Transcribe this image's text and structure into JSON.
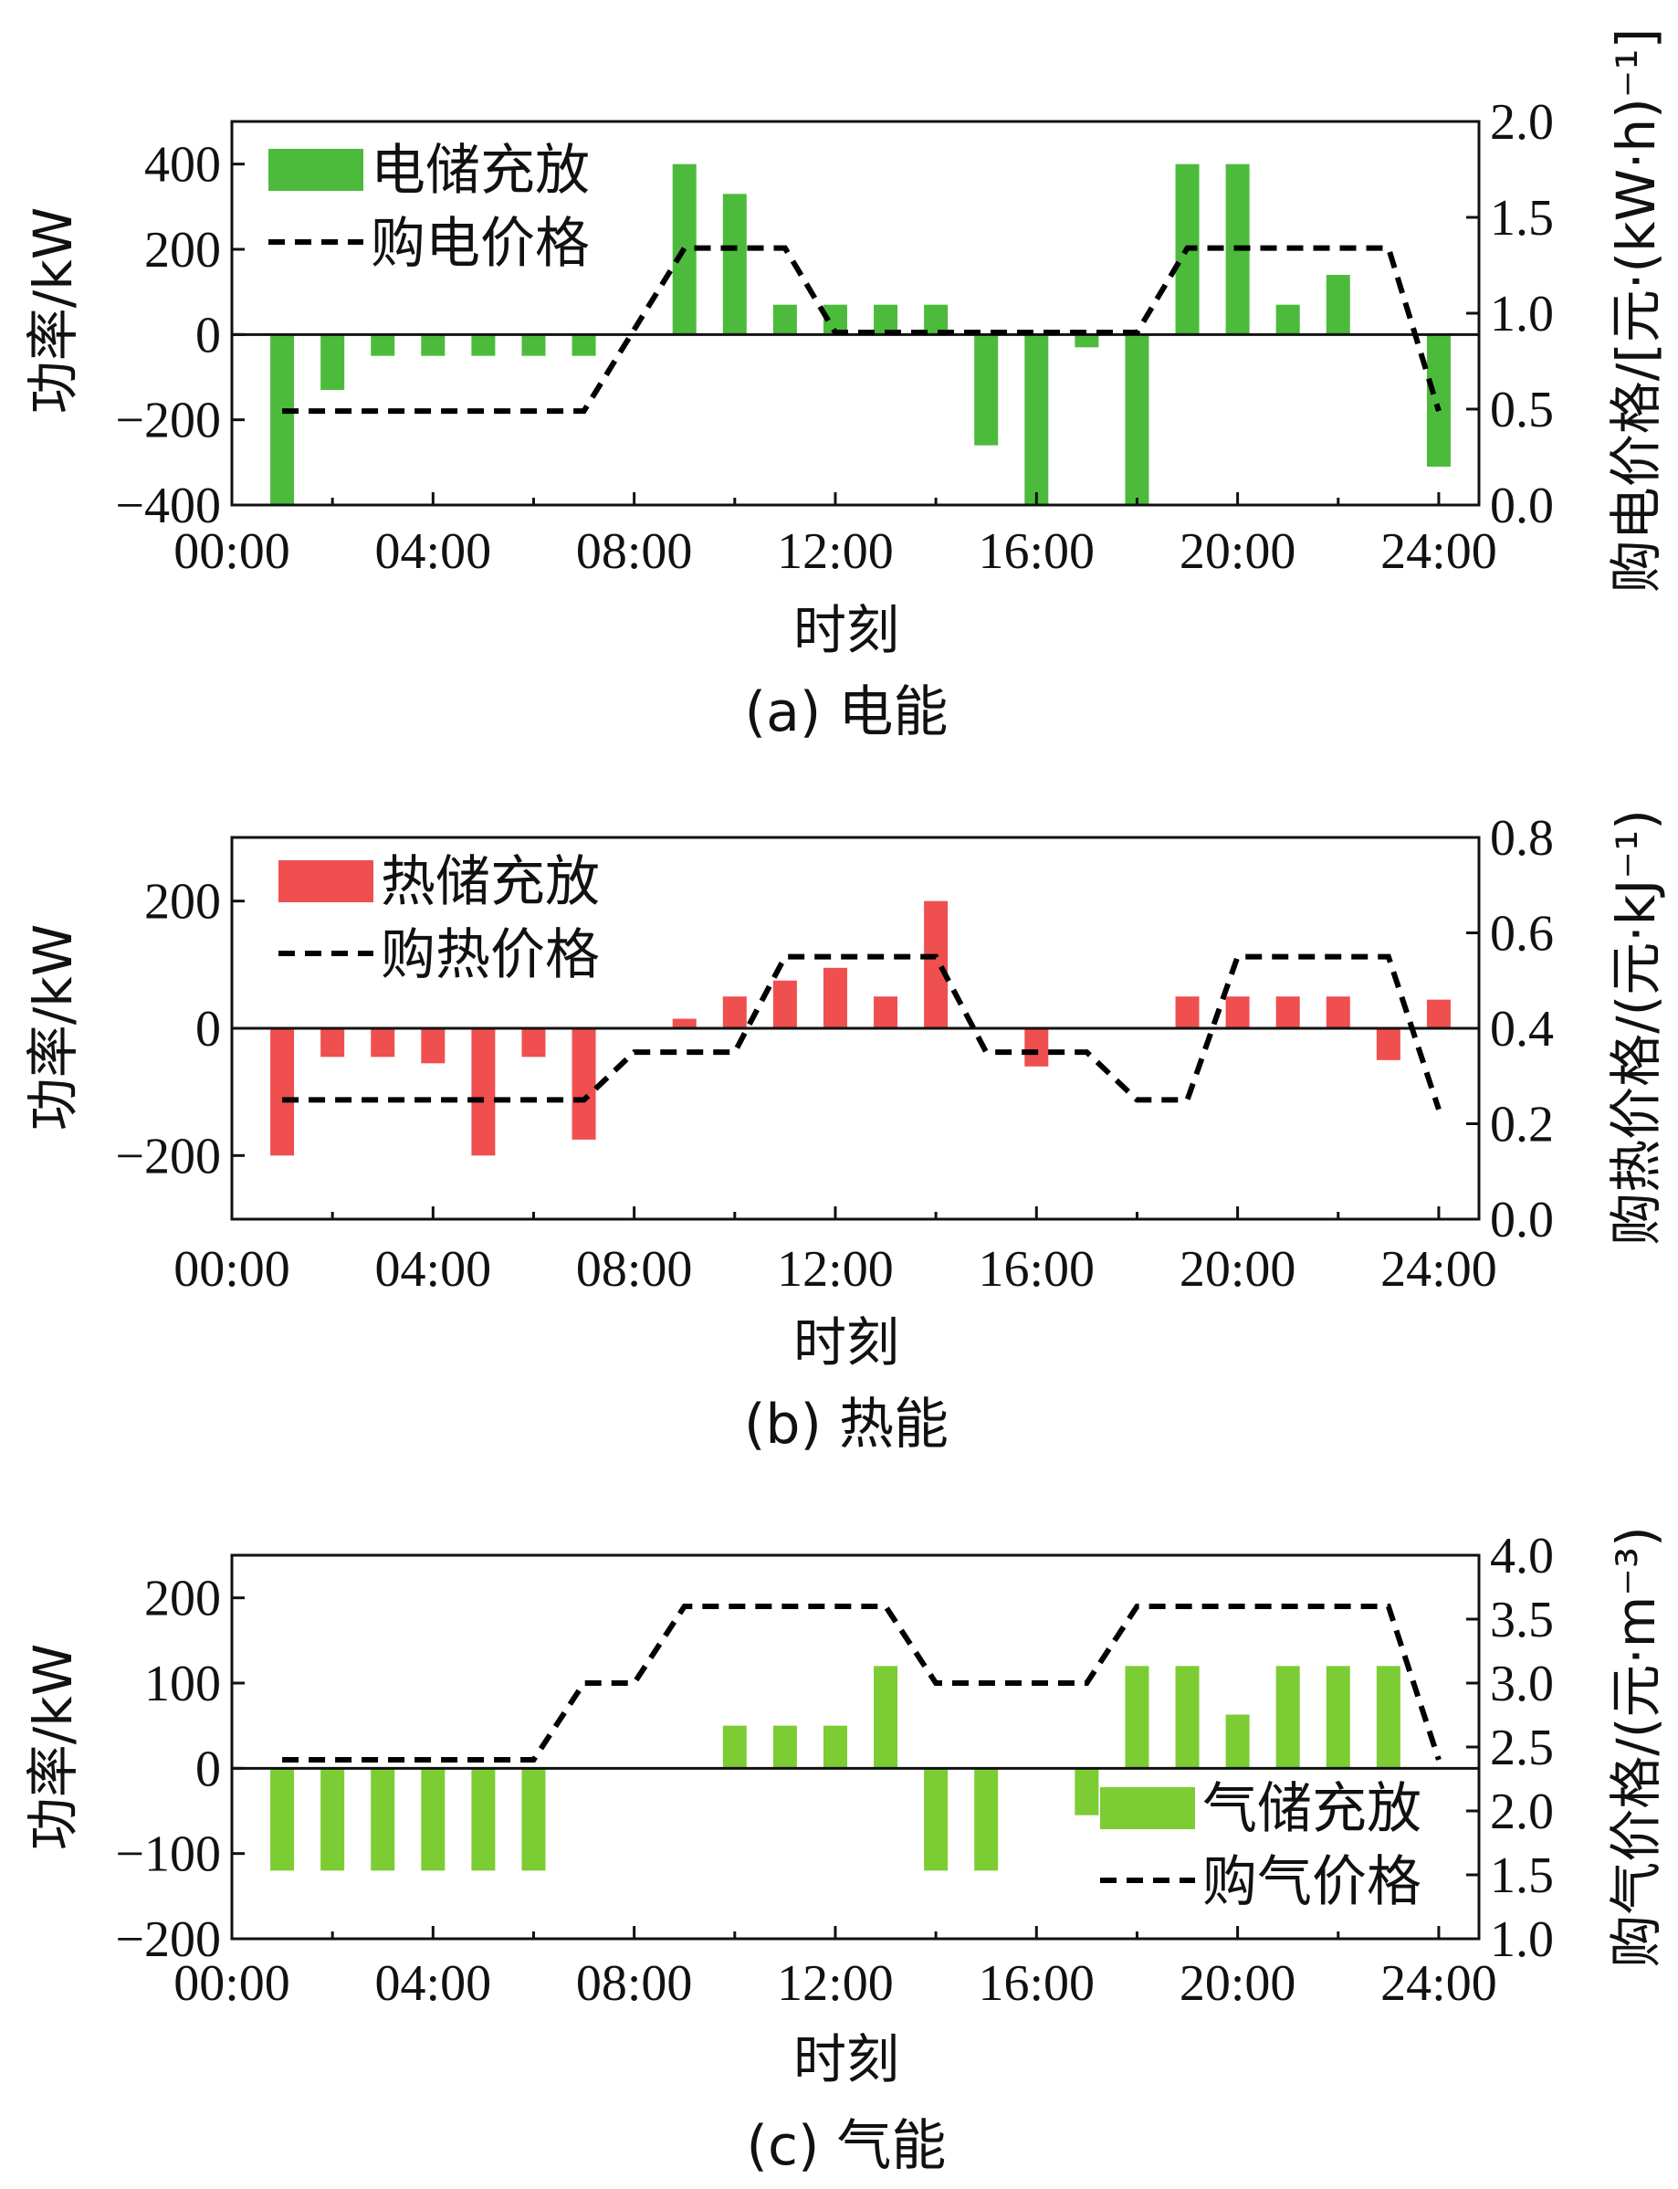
{
  "chart_data": [
    {
      "type": "bar",
      "caption": "(a) 电能",
      "xlabel": "时刻",
      "ylabel": "功率/kW",
      "y2label": "购电价格/[元·(kW·h)⁻¹]",
      "x_ticks": [
        "00:00",
        "04:00",
        "08:00",
        "12:00",
        "16:00",
        "20:00",
        "24:00"
      ],
      "xlim": [
        0,
        24.8
      ],
      "ylim": [
        -400,
        500
      ],
      "y_ticks": [
        -400,
        -200,
        0,
        200,
        400
      ],
      "y_tick_labels": [
        "−400",
        "−200",
        "0",
        "200",
        "400"
      ],
      "y2lim": [
        0,
        2.0
      ],
      "y2_ticks": [
        0,
        0.5,
        1.0,
        1.5,
        2.0
      ],
      "y2_tick_labels": [
        "0.0",
        "0.5",
        "1.0",
        "1.5",
        "2.0"
      ],
      "legend_position": "top-left",
      "bar_series": {
        "name": "电储充放",
        "color": "#4cbb3c",
        "x": [
          1,
          2,
          3,
          4,
          5,
          6,
          7,
          8,
          9,
          10,
          11,
          12,
          13,
          14,
          15,
          16,
          17,
          18,
          19,
          20,
          21,
          22,
          23,
          24
        ],
        "values": [
          -400,
          -130,
          -50,
          -50,
          -50,
          -50,
          -50,
          0,
          400,
          330,
          70,
          70,
          70,
          70,
          -260,
          -400,
          -30,
          -400,
          400,
          400,
          70,
          140,
          0,
          -310
        ]
      },
      "line_series": {
        "name": "购电价格",
        "x": [
          1,
          7,
          9,
          11,
          12,
          18,
          19,
          23,
          24
        ],
        "values": [
          0.49,
          0.49,
          1.34,
          1.34,
          0.9,
          0.9,
          1.34,
          1.34,
          0.49
        ]
      }
    },
    {
      "type": "bar",
      "caption": "(b) 热能",
      "xlabel": "时刻",
      "ylabel": "功率/kW",
      "y2label": "购热价格/(元·kJ⁻¹)",
      "x_ticks": [
        "00:00",
        "04:00",
        "08:00",
        "12:00",
        "16:00",
        "20:00",
        "24:00"
      ],
      "xlim": [
        0,
        24.8
      ],
      "ylim": [
        -300,
        300
      ],
      "y_ticks": [
        -200,
        0,
        200
      ],
      "y_tick_labels": [
        "−200",
        "0",
        "200"
      ],
      "y2lim": [
        0,
        0.8
      ],
      "y2_ticks": [
        0,
        0.2,
        0.4,
        0.6,
        0.8
      ],
      "y2_tick_labels": [
        "0.0",
        "0.2",
        "0.4",
        "0.6",
        "0.8"
      ],
      "legend_position": "top-left",
      "bar_series": {
        "name": "热储充放",
        "color": "#ef4f4f",
        "x": [
          1,
          2,
          3,
          4,
          5,
          6,
          7,
          8,
          9,
          10,
          11,
          12,
          13,
          14,
          15,
          16,
          17,
          18,
          19,
          20,
          21,
          22,
          23,
          24
        ],
        "values": [
          -200,
          -45,
          -45,
          -55,
          -200,
          -45,
          -175,
          0,
          15,
          50,
          75,
          95,
          50,
          200,
          0,
          -60,
          0,
          0,
          50,
          50,
          50,
          50,
          -50,
          45
        ]
      },
      "line_series": {
        "name": "购热价格",
        "x": [
          1,
          7,
          8,
          10,
          11,
          14,
          15,
          17,
          18,
          19,
          20,
          23,
          24
        ],
        "values": [
          0.25,
          0.25,
          0.35,
          0.35,
          0.55,
          0.55,
          0.35,
          0.35,
          0.25,
          0.25,
          0.55,
          0.55,
          0.23
        ]
      }
    },
    {
      "type": "bar",
      "caption": "(c) 气能",
      "xlabel": "时刻",
      "ylabel": "功率/kW",
      "y2label": "购气价格/(元·m⁻³)",
      "x_ticks": [
        "00:00",
        "04:00",
        "08:00",
        "12:00",
        "16:00",
        "20:00",
        "24:00"
      ],
      "xlim": [
        0,
        24.8
      ],
      "ylim": [
        -200,
        250
      ],
      "y_ticks": [
        -200,
        -100,
        0,
        100,
        200
      ],
      "y_tick_labels": [
        "−200",
        "−100",
        "0",
        "100",
        "200"
      ],
      "y2lim": [
        1.0,
        4.0
      ],
      "y2_ticks": [
        1.0,
        1.5,
        2.0,
        2.5,
        3.0,
        3.5,
        4.0
      ],
      "y2_tick_labels": [
        "1.0",
        "1.5",
        "2.0",
        "2.5",
        "3.0",
        "3.5",
        "4.0"
      ],
      "legend_position": "bottom-right",
      "bar_series": {
        "name": "气储充放",
        "color": "#7ccc34",
        "x": [
          1,
          2,
          3,
          4,
          5,
          6,
          7,
          8,
          9,
          10,
          11,
          12,
          13,
          14,
          15,
          16,
          17,
          18,
          19,
          20,
          21,
          22,
          23,
          24
        ],
        "values": [
          -120,
          -120,
          -120,
          -120,
          -120,
          -120,
          0,
          0,
          0,
          50,
          50,
          50,
          120,
          -120,
          -120,
          0,
          -55,
          120,
          120,
          63,
          120,
          120,
          120,
          0
        ]
      },
      "line_series": {
        "name": "购气价格",
        "x": [
          1,
          6,
          7,
          8,
          9,
          13,
          14,
          17,
          18,
          23,
          24
        ],
        "values": [
          2.4,
          2.4,
          3.0,
          3.0,
          3.6,
          3.6,
          3.0,
          3.0,
          3.6,
          3.6,
          2.4
        ]
      }
    }
  ]
}
